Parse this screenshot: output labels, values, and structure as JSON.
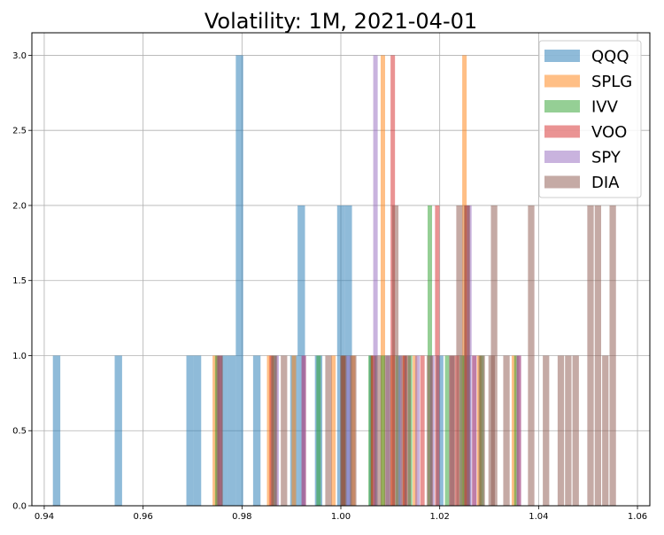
{
  "chart_data": {
    "type": "bar",
    "subtype": "overlapping-histogram",
    "title": "Volatility: 1M, 2021-04-01",
    "xlabel": "",
    "ylabel": "",
    "xlim": [
      0.9375,
      1.0625
    ],
    "ylim": [
      0,
      3.15
    ],
    "xticks": [
      "0.94",
      "0.96",
      "0.98",
      "1.00",
      "1.02",
      "1.04",
      "1.06"
    ],
    "xtick_values": [
      0.94,
      0.96,
      0.98,
      1.0,
      1.02,
      1.04,
      1.06
    ],
    "yticks": [
      "0.0",
      "0.5",
      "1.0",
      "1.5",
      "2.0",
      "2.5",
      "3.0"
    ],
    "ytick_values": [
      0,
      0.5,
      1.0,
      1.5,
      2.0,
      2.5,
      3.0
    ],
    "grid": true,
    "legend_position": "top-right",
    "bar_opacity": 0.5,
    "series": [
      {
        "name": "QQQ",
        "color": "#1f77b4",
        "bin_width": 0.0015,
        "bins": [
          [
            0.9425,
            1
          ],
          [
            0.955,
            1
          ],
          [
            0.9695,
            1
          ],
          [
            0.971,
            1
          ],
          [
            0.9765,
            1
          ],
          [
            0.978,
            1
          ],
          [
            0.9795,
            3
          ],
          [
            0.983,
            1
          ],
          [
            0.9905,
            1
          ],
          [
            0.992,
            2
          ],
          [
            0.9955,
            1
          ],
          [
            1.0,
            2
          ],
          [
            1.0015,
            2
          ],
          [
            1.0065,
            1
          ],
          [
            1.0125,
            1
          ],
          [
            1.02,
            1
          ],
          [
            1.0255,
            1
          ]
        ]
      },
      {
        "name": "SPLG",
        "color": "#ff7f0e",
        "bin_width": 0.0009,
        "bins": [
          [
            0.9745,
            1
          ],
          [
            0.9855,
            1
          ],
          [
            0.9905,
            1
          ],
          [
            0.9985,
            1
          ],
          [
            1.0025,
            1
          ],
          [
            1.0065,
            1
          ],
          [
            1.0085,
            3
          ],
          [
            1.0105,
            1
          ],
          [
            1.0125,
            1
          ],
          [
            1.015,
            1
          ],
          [
            1.0225,
            1
          ],
          [
            1.025,
            3
          ],
          [
            1.028,
            1
          ],
          [
            1.035,
            1
          ]
        ]
      },
      {
        "name": "IVV",
        "color": "#2ca02c",
        "bin_width": 0.0009,
        "bins": [
          [
            0.975,
            1
          ],
          [
            0.9865,
            1
          ],
          [
            0.9955,
            1
          ],
          [
            1.0005,
            1
          ],
          [
            1.006,
            1
          ],
          [
            1.0085,
            1
          ],
          [
            1.0115,
            1
          ],
          [
            1.014,
            1
          ],
          [
            1.018,
            2
          ],
          [
            1.0215,
            1
          ],
          [
            1.0245,
            1
          ],
          [
            1.0285,
            1
          ],
          [
            1.0355,
            1
          ]
        ]
      },
      {
        "name": "VOO",
        "color": "#d62728",
        "bin_width": 0.0009,
        "bins": [
          [
            0.9755,
            1
          ],
          [
            0.986,
            1
          ],
          [
            0.9925,
            1
          ],
          [
            1.0005,
            1
          ],
          [
            1.0065,
            1
          ],
          [
            1.0105,
            3
          ],
          [
            1.013,
            1
          ],
          [
            1.0165,
            1
          ],
          [
            1.0195,
            2
          ],
          [
            1.0235,
            1
          ],
          [
            1.0255,
            2
          ],
          [
            1.027,
            1
          ],
          [
            1.036,
            1
          ]
        ]
      },
      {
        "name": "SPY",
        "color": "#9467bd",
        "bin_width": 0.0009,
        "bins": [
          [
            0.9755,
            1
          ],
          [
            0.987,
            1
          ],
          [
            0.9925,
            1
          ],
          [
            1.0015,
            1
          ],
          [
            1.007,
            3
          ],
          [
            1.0095,
            1
          ],
          [
            1.012,
            1
          ],
          [
            1.0155,
            1
          ],
          [
            1.0185,
            1
          ],
          [
            1.0225,
            1
          ],
          [
            1.026,
            2
          ],
          [
            1.027,
            1
          ],
          [
            1.036,
            1
          ]
        ]
      },
      {
        "name": "DIA",
        "color": "#8c564b",
        "bin_width": 0.0013,
        "bins": [
          [
            0.9755,
            1
          ],
          [
            0.9865,
            1
          ],
          [
            0.9885,
            1
          ],
          [
            0.9975,
            1
          ],
          [
            1.0005,
            1
          ],
          [
            1.0025,
            1
          ],
          [
            1.0075,
            1
          ],
          [
            1.0095,
            1
          ],
          [
            1.011,
            2
          ],
          [
            1.0135,
            1
          ],
          [
            1.018,
            1
          ],
          [
            1.0225,
            1
          ],
          [
            1.024,
            2
          ],
          [
            1.0255,
            2
          ],
          [
            1.0285,
            1
          ],
          [
            1.0305,
            1
          ],
          [
            1.031,
            2
          ],
          [
            1.0335,
            1
          ],
          [
            1.0385,
            2
          ],
          [
            1.0415,
            1
          ],
          [
            1.0445,
            1
          ],
          [
            1.046,
            1
          ],
          [
            1.0475,
            1
          ],
          [
            1.0505,
            2
          ],
          [
            1.052,
            2
          ],
          [
            1.0535,
            1
          ],
          [
            1.055,
            2
          ]
        ]
      }
    ]
  }
}
